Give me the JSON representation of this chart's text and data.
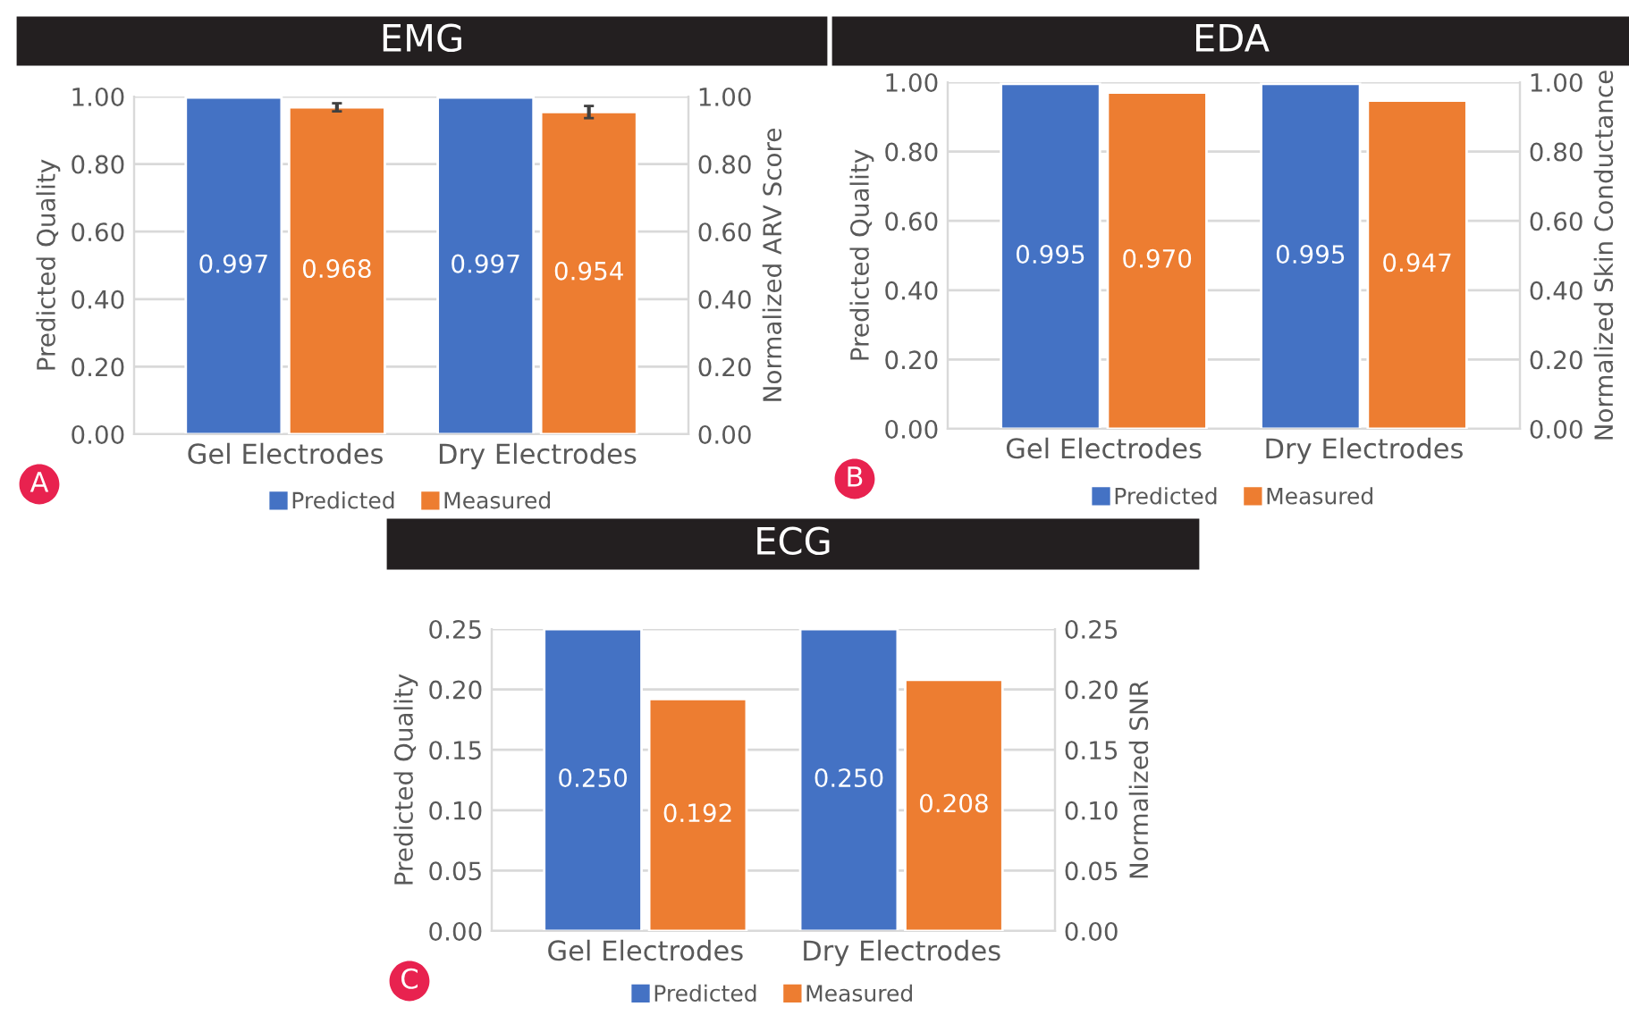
{
  "chart_data": [
    {
      "type": "bar",
      "title": "EMG",
      "ylabel": "Predicted Quality",
      "y2label": "Normalized ARV Score",
      "categories": [
        "Gel Electrodes",
        "Dry Electrodes"
      ],
      "series": [
        {
          "name": "Predicted",
          "color": "#4472c4",
          "values": [
            0.997,
            0.997
          ],
          "value_labels": [
            "0.997",
            "0.997"
          ]
        },
        {
          "name": "Measured",
          "color": "#ed7d31",
          "values": [
            0.968,
            0.954
          ],
          "value_labels": [
            "0.968",
            "0.954"
          ],
          "errors": [
            0.012,
            0.018
          ],
          "axis": "y2"
        }
      ],
      "ylim": [
        0,
        1
      ],
      "yticks": [
        {
          "value": 0,
          "label": "0.00"
        },
        {
          "value": 0.2,
          "label": "0.20"
        },
        {
          "value": 0.4,
          "label": "0.40"
        },
        {
          "value": 0.6,
          "label": "0.60"
        },
        {
          "value": 0.8,
          "label": "0.80"
        },
        {
          "value": 1,
          "label": "1.00"
        }
      ],
      "y2lim": [
        0,
        1
      ],
      "y2ticks": [
        {
          "value": 0,
          "label": "0.00"
        },
        {
          "value": 0.2,
          "label": "0.20"
        },
        {
          "value": 0.4,
          "label": "0.40"
        },
        {
          "value": 0.6,
          "label": "0.60"
        },
        {
          "value": 0.8,
          "label": "0.80"
        },
        {
          "value": 1,
          "label": "1.00"
        }
      ],
      "grid": "y",
      "legend": "bottom",
      "annotations": [
        "A"
      ]
    },
    {
      "type": "bar",
      "title": "EDA",
      "ylabel": "Predicted Quality",
      "y2label": "Normalized Skin Conductance",
      "categories": [
        "Gel Electrodes",
        "Dry Electrodes"
      ],
      "series": [
        {
          "name": "Predicted",
          "color": "#4472c4",
          "values": [
            0.995,
            0.995
          ],
          "value_labels": [
            "0.995",
            "0.995"
          ]
        },
        {
          "name": "Measured",
          "color": "#ed7d31",
          "values": [
            0.97,
            0.947
          ],
          "value_labels": [
            "0.970",
            "0.947"
          ],
          "axis": "y2"
        }
      ],
      "ylim": [
        0,
        1
      ],
      "yticks": [
        {
          "value": 0,
          "label": "0.00"
        },
        {
          "value": 0.2,
          "label": "0.20"
        },
        {
          "value": 0.4,
          "label": "0.40"
        },
        {
          "value": 0.6,
          "label": "0.60"
        },
        {
          "value": 0.8,
          "label": "0.80"
        },
        {
          "value": 1,
          "label": "1.00"
        }
      ],
      "y2lim": [
        0,
        1
      ],
      "y2ticks": [
        {
          "value": 0,
          "label": "0.00"
        },
        {
          "value": 0.2,
          "label": "0.20"
        },
        {
          "value": 0.4,
          "label": "0.40"
        },
        {
          "value": 0.6,
          "label": "0.60"
        },
        {
          "value": 0.8,
          "label": "0.80"
        },
        {
          "value": 1,
          "label": "1.00"
        }
      ],
      "grid": "y",
      "legend": "bottom",
      "annotations": [
        "B"
      ]
    },
    {
      "type": "bar",
      "title": "ECG",
      "ylabel": "Predicted Quality",
      "y2label": "Normalized SNR",
      "categories": [
        "Gel Electrodes",
        "Dry Electrodes"
      ],
      "series": [
        {
          "name": "Predicted",
          "color": "#4472c4",
          "values": [
            0.25,
            0.25
          ],
          "value_labels": [
            "0.250",
            "0.250"
          ]
        },
        {
          "name": "Measured",
          "color": "#ed7d31",
          "values": [
            0.192,
            0.208
          ],
          "value_labels": [
            "0.192",
            "0.208"
          ],
          "axis": "y2"
        }
      ],
      "ylim": [
        0,
        0.25
      ],
      "yticks": [
        {
          "value": 0,
          "label": "0.00"
        },
        {
          "value": 0.05,
          "label": "0.05"
        },
        {
          "value": 0.1,
          "label": "0.10"
        },
        {
          "value": 0.15,
          "label": "0.15"
        },
        {
          "value": 0.2,
          "label": "0.20"
        },
        {
          "value": 0.25,
          "label": "0.25"
        }
      ],
      "y2lim": [
        0,
        0.25
      ],
      "y2ticks": [
        {
          "value": 0,
          "label": "0.00"
        },
        {
          "value": 0.05,
          "label": "0.05"
        },
        {
          "value": 0.1,
          "label": "0.10"
        },
        {
          "value": 0.15,
          "label": "0.15"
        },
        {
          "value": 0.2,
          "label": "0.20"
        },
        {
          "value": 0.25,
          "label": "0.25"
        }
      ],
      "grid": "y",
      "legend": "bottom",
      "annotations": [
        "C"
      ]
    }
  ]
}
